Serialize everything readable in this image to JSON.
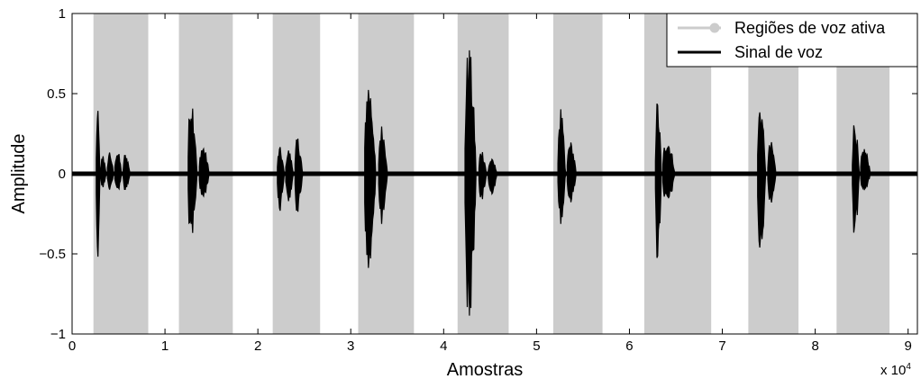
{
  "chart_data": {
    "type": "line",
    "title": "",
    "xlabel": "Amostras",
    "ylabel": "Amplitude",
    "x_scale_label": "x 10",
    "x_scale_exponent": "4",
    "xlim": [
      0,
      91000
    ],
    "ylim": [
      -1,
      1
    ],
    "xticks": [
      0,
      10000,
      20000,
      30000,
      40000,
      50000,
      60000,
      70000,
      80000,
      90000
    ],
    "xtick_labels": [
      "0",
      "1",
      "2",
      "3",
      "4",
      "5",
      "6",
      "7",
      "8",
      "9"
    ],
    "yticks": [
      -1,
      -0.5,
      0,
      0.5,
      1
    ],
    "ytick_labels": [
      "−1",
      "−0.5",
      "0",
      "0.5",
      "1"
    ],
    "grid": false,
    "legend_position": "top-right",
    "legend": [
      "Regiões de voz ativa",
      "Sinal de voz"
    ],
    "series": [
      {
        "name": "Regiões de voz ativa",
        "color": "#cccccc",
        "regions": [
          [
            2300,
            8200
          ],
          [
            11500,
            17300
          ],
          [
            21600,
            26700
          ],
          [
            30800,
            36800
          ],
          [
            41500,
            47000
          ],
          [
            51800,
            57100
          ],
          [
            61600,
            68800
          ],
          [
            72800,
            78200
          ],
          [
            82300,
            88000
          ]
        ]
      },
      {
        "name": "Sinal de voz",
        "color": "#000000",
        "bursts": [
          {
            "start": 2600,
            "end": 3100,
            "max": 0.44,
            "min": -0.58
          },
          {
            "start": 3100,
            "end": 3800,
            "max": 0.13,
            "min": -0.1
          },
          {
            "start": 3800,
            "end": 4600,
            "max": 0.16,
            "min": -0.12
          },
          {
            "start": 4600,
            "end": 5500,
            "max": 0.17,
            "min": -0.13
          },
          {
            "start": 5500,
            "end": 6400,
            "max": 0.14,
            "min": -0.12
          },
          {
            "start": 12500,
            "end": 13700,
            "max": 0.55,
            "min": -0.5
          },
          {
            "start": 13700,
            "end": 15000,
            "max": 0.2,
            "min": -0.18
          },
          {
            "start": 22100,
            "end": 23000,
            "max": 0.18,
            "min": -0.25
          },
          {
            "start": 23000,
            "end": 24000,
            "max": 0.17,
            "min": -0.2
          },
          {
            "start": 24000,
            "end": 25000,
            "max": 0.25,
            "min": -0.27
          },
          {
            "start": 31500,
            "end": 33000,
            "max": 0.65,
            "min": -0.73
          },
          {
            "start": 33000,
            "end": 34200,
            "max": 0.33,
            "min": -0.35
          },
          {
            "start": 42300,
            "end": 43800,
            "max": 0.87,
            "min": -1.0
          },
          {
            "start": 43800,
            "end": 44800,
            "max": 0.17,
            "min": -0.2
          },
          {
            "start": 44800,
            "end": 46000,
            "max": 0.1,
            "min": -0.14
          },
          {
            "start": 52300,
            "end": 53300,
            "max": 0.45,
            "min": -0.35
          },
          {
            "start": 53300,
            "end": 54500,
            "max": 0.22,
            "min": -0.2
          },
          {
            "start": 62800,
            "end": 63600,
            "max": 0.5,
            "min": -0.6
          },
          {
            "start": 63600,
            "end": 65200,
            "max": 0.25,
            "min": -0.22
          },
          {
            "start": 73800,
            "end": 74900,
            "max": 0.5,
            "min": -0.6
          },
          {
            "start": 74900,
            "end": 76000,
            "max": 0.22,
            "min": -0.2
          },
          {
            "start": 84000,
            "end": 84900,
            "max": 0.37,
            "min": -0.45
          },
          {
            "start": 84900,
            "end": 86200,
            "max": 0.18,
            "min": -0.12
          }
        ]
      }
    ]
  }
}
